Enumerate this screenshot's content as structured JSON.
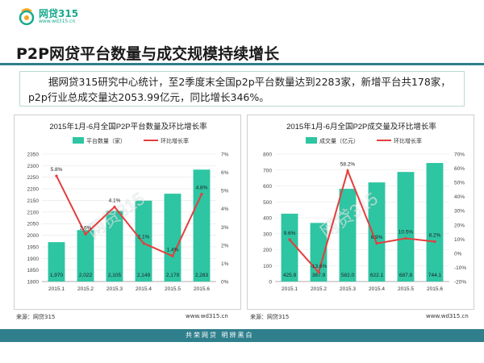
{
  "brand": {
    "name": "网贷315",
    "url": "www.wd315.cn",
    "colors": {
      "green": "#2ec5a3",
      "red": "#e53d3d",
      "teal": "#2f7f8c"
    }
  },
  "header": {
    "title": "P2P网贷平台数量与成交规模持续增长"
  },
  "intro": {
    "text": "据网贷315研究中心统计，至2季度末全国p2p平台数量达到2283家，新增平台共178家，p2p行业总成交量达2053.99亿元，同比增长346%。"
  },
  "footer": {
    "source_left": "来源：网贷315",
    "url_left": "www.wd315.cn",
    "source_right": "来源：网贷315",
    "url_right": "www.wd315.cn",
    "slogan": "共荣网贷 明辨黑白"
  },
  "chart_data": [
    {
      "type": "bar",
      "title": "2015年1月-6月全国P2P平台数量及环比增长率",
      "categories": [
        "2015.1",
        "2015.2",
        "2015.3",
        "2015.4",
        "2015.5",
        "2015.6"
      ],
      "series": [
        {
          "name": "平台数量（家）",
          "type": "bar",
          "axis": "left",
          "values": [
            1970,
            2022,
            2105,
            2149,
            2179,
            2283
          ],
          "labels": [
            "1,970",
            "2,022",
            "2,105",
            "2,149",
            "2,179",
            "2,283"
          ]
        },
        {
          "name": "环比增长率",
          "type": "line",
          "axis": "right",
          "values": [
            5.8,
            2.6,
            4.1,
            2.1,
            1.4,
            4.8
          ],
          "labels": [
            "5.8%",
            "2.6%",
            "4.1%",
            "2.1%",
            "1.4%",
            "4.8%"
          ]
        }
      ],
      "y_left": {
        "min": 1800,
        "max": 2350,
        "step": 50,
        "ticks": [
          "1800",
          "1850",
          "1900",
          "1950",
          "2000",
          "2050",
          "2100",
          "2150",
          "2200",
          "2250",
          "2300",
          "2350"
        ]
      },
      "y_right": {
        "min": 0,
        "max": 7,
        "step": 1,
        "ticks": [
          "0%",
          "1%",
          "2%",
          "3%",
          "4%",
          "5%",
          "6%",
          "7%"
        ]
      },
      "legend": "top",
      "watermark": "网贷315"
    },
    {
      "type": "bar",
      "title": "2015年1月-6月全国P2P成交量及环比增长率",
      "categories": [
        "2015.1",
        "2015.2",
        "2015.3",
        "2015.4",
        "2015.5",
        "2015.6"
      ],
      "series": [
        {
          "name": "成交量（亿元）",
          "type": "bar",
          "axis": "left",
          "values": [
            425.9,
            367.9,
            582.0,
            622.1,
            687.8,
            744.1
          ],
          "labels": [
            "425.9",
            "367.9",
            "582.0",
            "622.1",
            "687.8",
            "744.1"
          ]
        },
        {
          "name": "环比增长率",
          "type": "line",
          "axis": "right",
          "values": [
            9.6,
            -13.6,
            58.2,
            6.9,
            10.5,
            8.2
          ],
          "labels": [
            "9.6%",
            "-13.6%",
            "58.2%",
            "6.9%",
            "10.5%",
            "8.2%"
          ]
        }
      ],
      "y_left": {
        "min": 0,
        "max": 800,
        "step": 100,
        "ticks": [
          "0",
          "100",
          "200",
          "300",
          "400",
          "500",
          "600",
          "700",
          "800"
        ]
      },
      "y_right": {
        "min": -20,
        "max": 70,
        "step": 10,
        "ticks": [
          "-20%",
          "-10%",
          "0%",
          "10%",
          "20%",
          "30%",
          "40%",
          "50%",
          "60%",
          "70%"
        ]
      },
      "legend": "top",
      "watermark": "网贷315"
    }
  ]
}
